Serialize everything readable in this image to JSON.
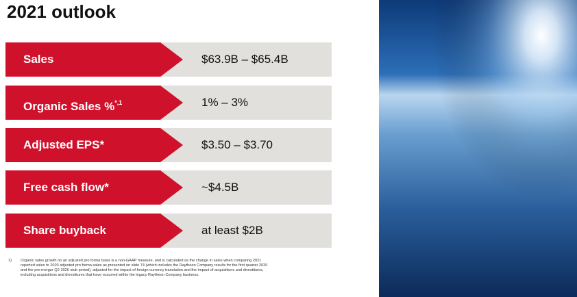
{
  "header": {
    "title": "2021 outlook"
  },
  "rows": [
    {
      "label": "Sales",
      "value": "$63.9B – $65.4B"
    },
    {
      "label": "Organic Sales %",
      "superscript": "*,1",
      "value": "1% – 3%"
    },
    {
      "label": "Adjusted EPS*",
      "value": "$3.50 – $3.70"
    },
    {
      "label": "Free cash flow*",
      "value": "~$4.5B"
    },
    {
      "label": "Share buyback",
      "value": "at least $2B"
    }
  ],
  "footnote": {
    "marker": "1)",
    "lines": [
      "Organic sales growth on an adjusted pro forma basis is a non-GAAP measure, and is calculated as the change in sales when comparing 2021",
      "reported sales to 2020 adjusted pro forma sales as presented on slide 74 (which includes the Raytheon Company results for the first quarter 2020",
      "and the pre-merger Q2 2020 stub period), adjusted for the impact of foreign currency translation and the impact of acquisitions and divestitures,",
      "including acquisitions and divestitures that have occurred within the legacy Raytheon Company business."
    ]
  }
}
